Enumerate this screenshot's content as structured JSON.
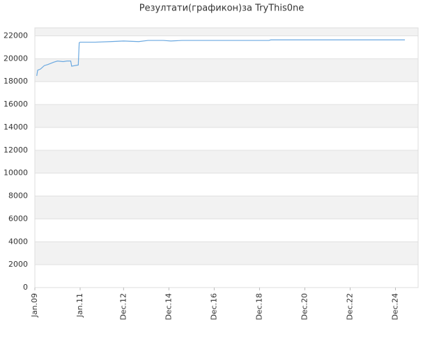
{
  "chart_data": {
    "type": "line",
    "title": "Резултати(графикон)за TryThis0ne",
    "x": [
      1,
      1.5,
      3,
      5,
      7,
      10,
      12,
      15,
      17,
      19,
      19.5,
      23,
      23.5,
      24,
      32,
      40,
      47,
      55,
      60,
      68,
      72,
      78,
      124,
      125,
      196
    ],
    "series": [
      {
        "name": "TryThis0ne",
        "color": "#6aa8e0",
        "values": [
          18500,
          19000,
          19100,
          19400,
          19500,
          19700,
          19800,
          19750,
          19800,
          19800,
          19350,
          19450,
          21400,
          21450,
          21450,
          21500,
          21550,
          21500,
          21600,
          21600,
          21550,
          21600,
          21600,
          21650,
          21650
        ]
      }
    ],
    "xlim": [
      0,
      203
    ],
    "xticks": [
      {
        "value": 0,
        "label": "Jan.09"
      },
      {
        "value": 24,
        "label": "Jan.11"
      },
      {
        "value": 47,
        "label": "Dec.12"
      },
      {
        "value": 71,
        "label": "Dec.14"
      },
      {
        "value": 95,
        "label": "Dec.16"
      },
      {
        "value": 119,
        "label": "Dec.18"
      },
      {
        "value": 143,
        "label": "Dec.20"
      },
      {
        "value": 167,
        "label": "Dec.22"
      },
      {
        "value": 191,
        "label": "Dec.24"
      }
    ],
    "ylim": [
      0,
      22700
    ],
    "yticks": [
      0,
      2000,
      4000,
      6000,
      8000,
      10000,
      12000,
      14000,
      16000,
      18000,
      20000,
      22000
    ],
    "grid": true
  }
}
